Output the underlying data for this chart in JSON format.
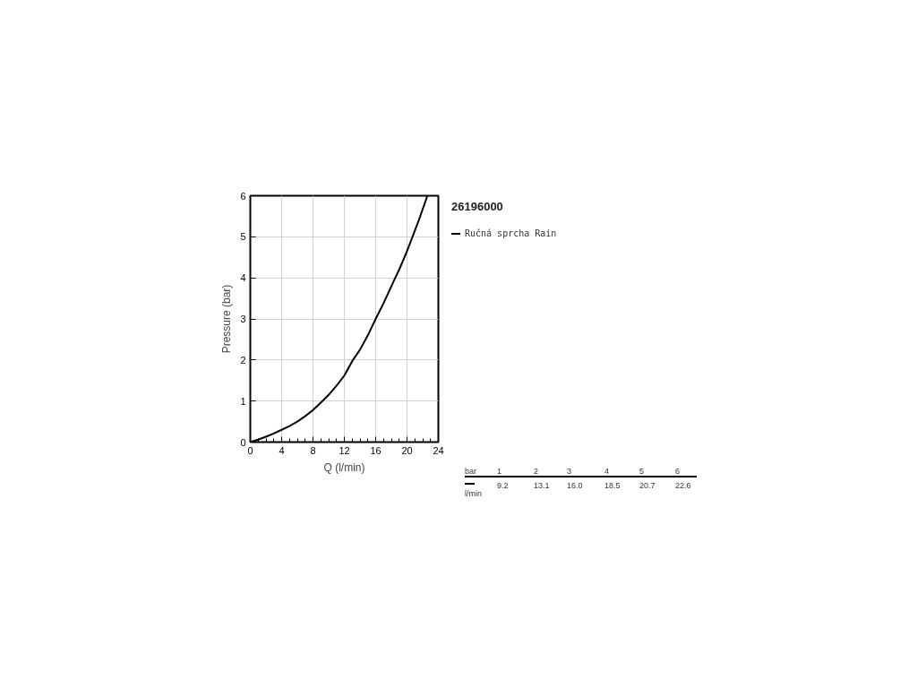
{
  "chart_data": {
    "type": "line",
    "title": "26196000",
    "xlabel": "Q (l/min)",
    "ylabel": "Pressure (bar)",
    "series": [
      {
        "name": "Ručná sprcha Rain",
        "color": "#000000",
        "x": [
          0,
          1,
          2,
          3,
          4,
          5,
          6,
          7,
          8,
          9.2,
          10,
          11,
          12,
          13.1,
          14,
          15,
          16,
          17,
          18.5,
          19,
          20,
          20.7,
          21.5,
          22.6
        ],
        "values": [
          0,
          0.06,
          0.13,
          0.21,
          0.3,
          0.39,
          0.5,
          0.63,
          0.78,
          1,
          1.15,
          1.37,
          1.62,
          2,
          2.25,
          2.6,
          3,
          3.38,
          4,
          4.2,
          4.65,
          5,
          5.4,
          6
        ]
      }
    ],
    "xlim": [
      0,
      24
    ],
    "xticks": [
      0,
      4,
      8,
      12,
      16,
      20,
      24
    ],
    "ylim": [
      0,
      6
    ],
    "yticks": [
      0,
      1,
      2,
      3,
      4,
      5,
      6
    ],
    "grid": true,
    "legend": "top right",
    "line_style": "solid",
    "marker": "none",
    "annotations": [
      "bar",
      "1",
      "2",
      "3",
      "4",
      "5",
      "6",
      "l/min",
      "9.2",
      "13.1",
      "16.0",
      "18.5",
      "20.7",
      "22.6"
    ]
  }
}
